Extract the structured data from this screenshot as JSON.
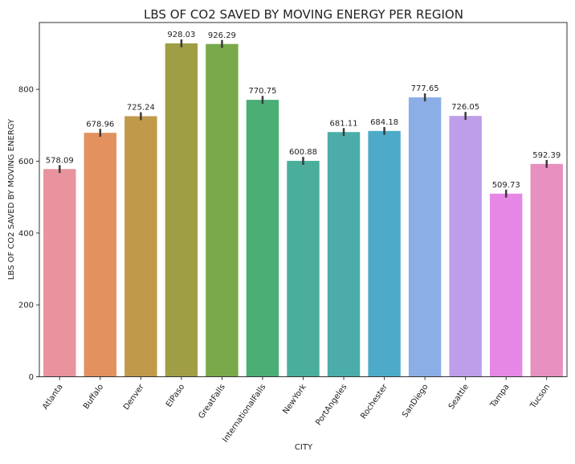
{
  "chart_data": {
    "type": "bar",
    "title": "LBS OF CO2 SAVED BY MOVING ENERGY PER REGION",
    "xlabel": "CITY",
    "ylabel": "LBS OF CO2 SAVED BY MOVING ENERGY",
    "categories": [
      "Atlanta",
      "Buffalo",
      "Denver",
      "ElPaso",
      "GreatFalls",
      "InternationalFalls",
      "NewYork",
      "PortAngeles",
      "Rochester",
      "SanDiego",
      "Seattle",
      "Tampa",
      "Tucson"
    ],
    "values": [
      578.09,
      678.96,
      725.24,
      928.03,
      926.29,
      770.75,
      600.88,
      681.11,
      684.18,
      777.65,
      726.05,
      509.73,
      592.39
    ],
    "data_labels": [
      "578.09",
      "678.96",
      "725.24",
      "928.03",
      "926.29",
      "770.75",
      "600.88",
      "681.11",
      "684.18",
      "777.65",
      "726.05",
      "509.73",
      "592.39"
    ],
    "error_half_width": 11,
    "colors": [
      "#e8939d",
      "#e3915f",
      "#c09a4a",
      "#a09e45",
      "#79a94a",
      "#4aae75",
      "#4aae9a",
      "#4cacaa",
      "#4dabc9",
      "#8caee6",
      "#bf9ee9",
      "#e687e6",
      "#e890c0"
    ],
    "yticks": [
      0,
      200,
      400,
      600,
      800
    ],
    "ylim": [
      0,
      986
    ],
    "grid": false,
    "legend": "none"
  }
}
